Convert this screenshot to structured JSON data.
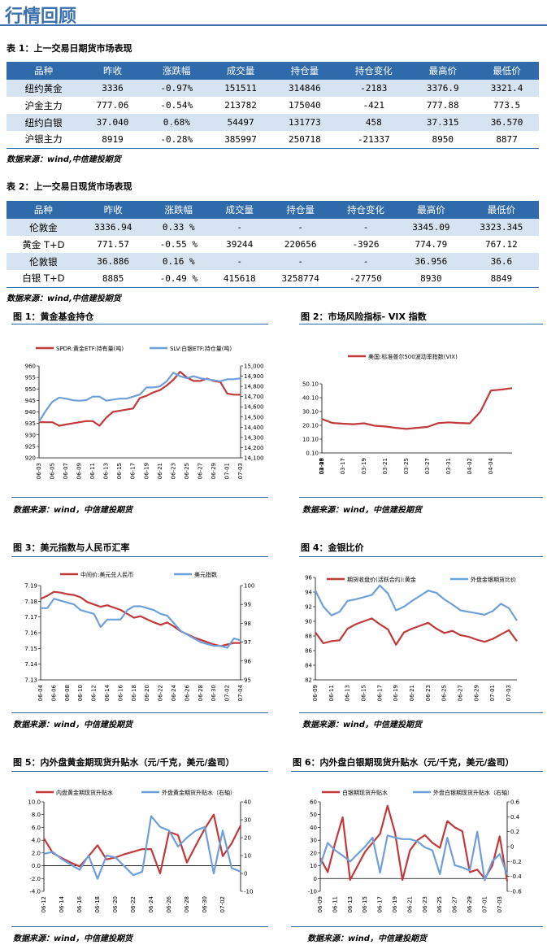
{
  "page_title": "行情回顾",
  "table1": {
    "caption": "表 1：上一交易日期货市场表现",
    "headers": [
      "品种",
      "昨收",
      "涨跌幅",
      "成交量",
      "持仓量",
      "持仓变化",
      "最高价",
      "最低价"
    ],
    "rows": [
      [
        "纽约黄金",
        "3336",
        "-0.97%",
        "151511",
        "314846",
        "-2183",
        "3376.9",
        "3321.4"
      ],
      [
        "沪金主力",
        "777.06",
        "-0.54%",
        "213782",
        "175040",
        "-421",
        "777.88",
        "773.5"
      ],
      [
        "纽约白银",
        "37.040",
        "0.68%",
        "54497",
        "131773",
        "458",
        "37.315",
        "36.570"
      ],
      [
        "沪银主力",
        "8919",
        "-0.28%",
        "385997",
        "250718",
        "-21337",
        "8950",
        "8877"
      ]
    ],
    "source": "数据来源：wind,中信建投期货"
  },
  "table2": {
    "caption": "表 2：上一交易日现货市场表现",
    "headers": [
      "品种",
      "昨收",
      "涨跌幅",
      "成交量",
      "持仓量",
      "持仓变化",
      "最高价",
      "最低价"
    ],
    "rows": [
      [
        "伦敦金",
        "3336.94",
        "0.33 %",
        "-",
        "-",
        "-",
        "3345.09",
        "3323.345"
      ],
      [
        "黄金 T+D",
        "771.57",
        "-0.55 %",
        "39244",
        "220656",
        "-3926",
        "774.79",
        "767.12"
      ],
      [
        "伦敦银",
        "36.886",
        "0.16 %",
        "-",
        "-",
        "-",
        "36.956",
        "36.6"
      ],
      [
        "白银 T+D",
        "8885",
        "-0.49 %",
        "415618",
        "3258774",
        "-27750",
        "8930",
        "8849"
      ]
    ],
    "source": "数据来源：wind,中信建投期货"
  },
  "figures": {
    "fig1_caption": "图 1：黄金基金持仓",
    "fig2_caption": "图 2：市场风险指标- VIX 指数",
    "fig3_caption": "图 3：美元指数与人民币汇率",
    "fig4_caption": "图 4：金银比价",
    "fig5_caption": "图 5：内外盘黄金期现货升贴水（元/千克，美元/盎司）",
    "fig6_caption": "图 6：内外盘白银期现货升贴水（元/千克，美元/盎司）",
    "source": "数据来源：wind，中信建投期货"
  },
  "colors": {
    "red": "#c0393b",
    "blue": "#6f9fd8",
    "header": "#2f6baa",
    "stripe": "#d6e3f1"
  },
  "chart_data": [
    {
      "id": "fig1",
      "type": "line",
      "x": [
        "06-03",
        "06-04",
        "06-05",
        "06-06",
        "06-07",
        "06-08",
        "06-09",
        "06-10",
        "06-11",
        "06-12",
        "06-13",
        "06-14",
        "06-15",
        "06-16",
        "06-17",
        "06-18",
        "06-19",
        "06-20",
        "06-21",
        "06-22",
        "06-23",
        "06-24",
        "06-25",
        "06-26",
        "06-27",
        "06-28",
        "06-29",
        "06-30",
        "07-01",
        "07-02",
        "07-03"
      ],
      "xticks": [
        "06-03",
        "06-05",
        "06-07",
        "06-09",
        "06-11",
        "06-13",
        "06-15",
        "06-17",
        "06-19",
        "06-21",
        "06-23",
        "06-25",
        "06-27",
        "06-29",
        "07-01",
        "07-03"
      ],
      "yleft": {
        "min": 920,
        "max": 960,
        "ticks": [
          920,
          925,
          930,
          935,
          940,
          945,
          950,
          955,
          960
        ]
      },
      "yright": {
        "min": 14100,
        "max": 15000,
        "ticks": [
          "14,100",
          "14,200",
          "14,300",
          "14,400",
          "14,500",
          "14,600",
          "14,700",
          "14,800",
          "14,900",
          "15,000"
        ],
        "tickvals": [
          14100,
          14200,
          14300,
          14400,
          14500,
          14600,
          14700,
          14800,
          14900,
          15000
        ]
      },
      "series": [
        {
          "name": "SPDR:黄金ETF:持有量(吨)",
          "color": "#c0393b",
          "axis": "left",
          "values": [
            935.5,
            935.5,
            935.5,
            934.0,
            934.5,
            935.0,
            935.5,
            936.0,
            936.0,
            934.0,
            937.5,
            940.0,
            940.5,
            941.0,
            941.5,
            946.0,
            947.0,
            948.5,
            949.5,
            951.5,
            954.0,
            957.5,
            955.0,
            953.5,
            953.5,
            954.5,
            953.5,
            953.0,
            948.0,
            947.5,
            947.5
          ]
        },
        {
          "name": "SLV:白银ETF:持仓量(吨)",
          "color": "#6f9fd8",
          "axis": "right",
          "values": [
            14455,
            14560,
            14650,
            14690,
            14680,
            14665,
            14660,
            14665,
            14700,
            14700,
            14660,
            14670,
            14680,
            14680,
            14700,
            14720,
            14790,
            14790,
            14800,
            14850,
            14935,
            14900,
            14880,
            14900,
            14880,
            14870,
            14860,
            14850,
            14870,
            14870,
            14880
          ]
        }
      ]
    },
    {
      "id": "fig2",
      "type": "line",
      "x": [
        "03-13",
        "03-14",
        "03-17",
        "03-18",
        "03-19",
        "03-20",
        "03-21",
        "03-24",
        "03-25",
        "03-26",
        "03-27",
        "03-28",
        "03-31",
        "04-01",
        "04-02",
        "04-03",
        "04-04",
        "04-07",
        "04-08"
      ],
      "xticks": [
        "03-13",
        "03-15",
        "03-17",
        "03-19",
        "03-21",
        "03-23",
        "03-25",
        "03-27",
        "03-29",
        "03-31",
        "04-02",
        "04-04",
        "04-06"
      ],
      "yleft": {
        "min": 0.1,
        "max": 50.1,
        "ticks": [
          "0.10",
          "10.10",
          "20.10",
          "30.10",
          "40.10",
          "50.10"
        ],
        "tickvals": [
          0.1,
          10.1,
          20.1,
          30.1,
          40.1,
          50.1
        ]
      },
      "series": [
        {
          "name": "美国:标准普尔500波动率指数(VIX)",
          "color": "#c0393b",
          "axis": "left",
          "values": [
            24.7,
            21.8,
            21.3,
            20.9,
            21.6,
            19.8,
            19.3,
            18.3,
            17.5,
            18.3,
            18.9,
            21.7,
            22.3,
            21.8,
            21.5,
            30.0,
            45.3,
            46.0,
            47.0
          ]
        }
      ]
    },
    {
      "id": "fig3",
      "type": "line",
      "x": [
        "06-04",
        "06-05",
        "06-06",
        "06-07",
        "06-08",
        "06-09",
        "06-10",
        "06-11",
        "06-12",
        "06-13",
        "06-14",
        "06-15",
        "06-16",
        "06-17",
        "06-18",
        "06-19",
        "06-20",
        "06-21",
        "06-22",
        "06-23",
        "06-24",
        "06-25",
        "06-26",
        "06-27",
        "06-28",
        "06-29",
        "06-30",
        "07-01",
        "07-02",
        "07-03",
        "07-04"
      ],
      "xticks": [
        "06-04",
        "06-06",
        "06-08",
        "06-10",
        "06-12",
        "06-14",
        "06-16",
        "06-18",
        "06-20",
        "06-22",
        "06-24",
        "06-26",
        "06-28",
        "06-30",
        "07-02",
        "07-04"
      ],
      "yleft": {
        "min": 7.13,
        "max": 7.19,
        "ticks": [
          "7.13",
          "7.14",
          "7.15",
          "7.16",
          "7.17",
          "7.18",
          "7.19"
        ],
        "tickvals": [
          7.13,
          7.14,
          7.15,
          7.16,
          7.17,
          7.18,
          7.19
        ]
      },
      "yright": {
        "min": 95,
        "max": 100,
        "ticks": [
          "95",
          "96",
          "97",
          "98",
          "99",
          "100"
        ],
        "tickvals": [
          95,
          96,
          97,
          98,
          99,
          100
        ]
      },
      "series": [
        {
          "name": "中间价:美元兑人民币",
          "color": "#c0393b",
          "axis": "left",
          "values": [
            7.1815,
            7.1835,
            7.186,
            7.1855,
            7.1845,
            7.184,
            7.1825,
            7.1795,
            7.178,
            7.1765,
            7.1775,
            7.176,
            7.1745,
            7.172,
            7.1695,
            7.1705,
            7.1685,
            7.1665,
            7.165,
            7.1665,
            7.164,
            7.161,
            7.159,
            7.157,
            7.1555,
            7.154,
            7.1525,
            7.1515,
            7.1525,
            7.1535,
            7.1535
          ]
        },
        {
          "name": "美元指数",
          "color": "#6f9fd8",
          "axis": "right",
          "values": [
            98.8,
            98.8,
            99.3,
            99.2,
            99.1,
            99.0,
            98.7,
            98.6,
            98.5,
            97.8,
            98.2,
            98.2,
            98.2,
            98.7,
            98.9,
            98.9,
            98.8,
            98.7,
            98.5,
            98.4,
            98.0,
            97.6,
            97.4,
            97.2,
            97.0,
            96.9,
            96.8,
            96.8,
            96.7,
            97.2,
            97.1
          ]
        }
      ]
    },
    {
      "id": "fig4",
      "type": "line",
      "x": [
        "06-09",
        "06-10",
        "06-11",
        "06-12",
        "06-13",
        "06-14",
        "06-15",
        "06-16",
        "06-17",
        "06-18",
        "06-19",
        "06-20",
        "06-21",
        "06-22",
        "06-23",
        "06-24",
        "06-25",
        "06-26",
        "06-27",
        "06-28",
        "06-29",
        "06-30",
        "07-01",
        "07-02",
        "07-03",
        "07-04"
      ],
      "xticks": [
        "06-09",
        "06-11",
        "06-13",
        "06-15",
        "06-17",
        "06-19",
        "06-21",
        "06-23",
        "06-25",
        "06-27",
        "06-29",
        "07-01",
        "07-03"
      ],
      "yleft": {
        "min": 82,
        "max": 96,
        "ticks": [
          "82",
          "84",
          "86",
          "88",
          "90",
          "92",
          "94",
          "96"
        ],
        "tickvals": [
          82,
          84,
          86,
          88,
          90,
          92,
          94,
          96
        ]
      },
      "series": [
        {
          "name": "期货收盘价(活跃合约):黄金",
          "color": "#c0393b",
          "axis": "left",
          "values": [
            88.5,
            87.0,
            87.3,
            87.4,
            89.0,
            89.6,
            90.0,
            90.4,
            89.6,
            88.9,
            86.8,
            88.5,
            89.0,
            89.4,
            89.8,
            89.0,
            88.4,
            88.7,
            88.1,
            87.9,
            87.5,
            87.2,
            87.6,
            88.2,
            88.8,
            87.3
          ]
        },
        {
          "name": "外盘金银期货比价",
          "color": "#6f9fd8",
          "axis": "left",
          "values": [
            94.2,
            92.0,
            90.8,
            91.3,
            92.8,
            93.0,
            93.3,
            93.6,
            94.9,
            93.8,
            91.5,
            92.0,
            92.8,
            93.5,
            94.2,
            93.9,
            93.0,
            92.3,
            91.5,
            91.3,
            91.1,
            90.9,
            91.4,
            92.4,
            91.8,
            90.1
          ]
        }
      ]
    },
    {
      "id": "fig5",
      "type": "line",
      "x": [
        "06-12",
        "06-13",
        "06-14",
        "06-15",
        "06-16",
        "06-17",
        "06-18",
        "06-19",
        "06-20",
        "06-21",
        "06-22",
        "06-23",
        "06-24",
        "06-25",
        "06-26",
        "06-27",
        "06-28",
        "06-29",
        "06-30",
        "07-01",
        "07-02",
        "07-03",
        "07-04"
      ],
      "xticks": [
        "06-12",
        "06-14",
        "06-16",
        "06-18",
        "06-20",
        "06-22",
        "06-24",
        "06-26",
        "06-28",
        "06-30",
        "07-02"
      ],
      "yleft": {
        "min": -4.0,
        "max": 10.0,
        "ticks": [
          "-4.0",
          "-2.0",
          "0.0",
          "2.0",
          "4.0",
          "6.0",
          "8.0",
          "10.0"
        ],
        "tickvals": [
          -4,
          -2,
          0,
          2,
          4,
          6,
          8,
          10
        ]
      },
      "yright": {
        "min": -10,
        "max": 40,
        "ticks": [
          "-10",
          "0",
          "10",
          "20",
          "30",
          "40"
        ],
        "tickvals": [
          -10,
          0,
          10,
          20,
          30,
          40
        ]
      },
      "series": [
        {
          "name": "内盘黄金期现货升贴水",
          "color": "#c0393b",
          "axis": "left",
          "values": [
            4.3,
            2.0,
            1.2,
            0.5,
            -0.1,
            1.5,
            3.2,
            1.0,
            1.3,
            1.8,
            2.2,
            2.6,
            2.6,
            -1.2,
            5.3,
            4.8,
            0.5,
            3.2,
            5.8,
            8.0,
            1.5,
            3.5,
            6.3
          ]
        },
        {
          "name": "外盘黄金期货升贴水（右轴）",
          "color": "#6f9fd8",
          "axis": "right",
          "values": [
            11,
            12,
            8,
            5,
            2,
            10,
            -3,
            10,
            9,
            4,
            -1,
            1,
            32,
            26,
            24,
            15,
            20,
            24,
            26,
            0,
            24,
            3,
            1
          ]
        }
      ]
    },
    {
      "id": "fig6",
      "type": "line",
      "x": [
        "06-09",
        "06-10",
        "06-11",
        "06-12",
        "06-13",
        "06-14",
        "06-15",
        "06-16",
        "06-17",
        "06-18",
        "06-19",
        "06-20",
        "06-21",
        "06-22",
        "06-23",
        "06-24",
        "06-25",
        "06-26",
        "06-27",
        "06-28",
        "06-29",
        "06-30",
        "07-01",
        "07-02",
        "07-03",
        "07-04"
      ],
      "xticks": [
        "06-09",
        "06-11",
        "06-13",
        "06-15",
        "06-17",
        "06-19",
        "06-21",
        "06-23",
        "06-25",
        "06-27",
        "06-29",
        "07-01",
        "07-03"
      ],
      "yleft": {
        "min": -10,
        "max": 60,
        "ticks": [
          "-10",
          "0",
          "10",
          "20",
          "30",
          "40",
          "50",
          "60"
        ],
        "tickvals": [
          -10,
          0,
          10,
          20,
          30,
          40,
          50,
          60
        ]
      },
      "yright": {
        "min": -0.6,
        "max": 0.6,
        "ticks": [
          "-0.6",
          "-0.4",
          "-0.2",
          "0",
          "0.2",
          "0.4",
          "0.6"
        ],
        "tickvals": [
          -0.6,
          -0.4,
          -0.2,
          0,
          0.2,
          0.4,
          0.6
        ]
      },
      "series": [
        {
          "name": "白银期现货升贴水",
          "color": "#c0393b",
          "axis": "left",
          "values": [
            16,
            5,
            28,
            48,
            -1,
            10,
            21,
            28,
            35,
            57,
            36,
            -1,
            22,
            30,
            34,
            28,
            24,
            45,
            40,
            37,
            5,
            7,
            0,
            10,
            33,
            -2
          ]
        },
        {
          "name": "外盘白银期现货升贴水（右轴）",
          "color": "#6f9fd8",
          "axis": "right",
          "values": [
            -0.25,
            0.05,
            -0.05,
            -0.12,
            -0.2,
            -0.1,
            0,
            0.12,
            -0.35,
            0.15,
            0.12,
            0.1,
            0.1,
            0.07,
            -0.01,
            -0.05,
            -0.37,
            0.12,
            -0.25,
            -0.28,
            -0.32,
            0.2,
            -0.45,
            -0.2,
            -0.1,
            -0.38
          ]
        }
      ]
    }
  ]
}
